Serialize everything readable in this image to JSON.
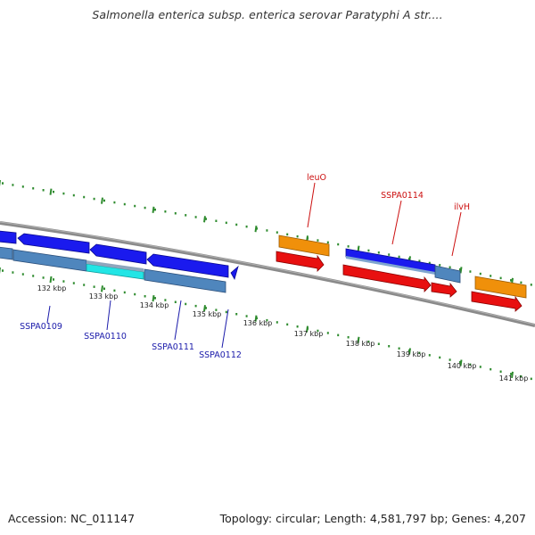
{
  "title": "Salmonella enterica subsp. enterica serovar Paratyphi A str....",
  "footer": {
    "accession": "Accession: NC_011147",
    "summary": "Topology: circular; Length: 4,581,797 bp; Genes: 4,207"
  },
  "colors": {
    "backbone": "#7a7a7a",
    "tick": "#2e8b2e",
    "gene_blue": "#1a1aee",
    "gene_steel": "#4f86bd",
    "gene_cyan": "#22e5e5",
    "gene_red": "#e81010",
    "gene_orange": "#f0900a",
    "label_blue": "#1a1aaa",
    "label_red": "#cc1010"
  },
  "ticks": [
    {
      "label": "132 kbp"
    },
    {
      "label": "133 kbp"
    },
    {
      "label": "134 kbp"
    },
    {
      "label": "135 kbp"
    },
    {
      "label": "136 kbp"
    },
    {
      "label": "137 kbp"
    },
    {
      "label": "138 kbp"
    },
    {
      "label": "139 kbp"
    },
    {
      "label": "140 kbp"
    },
    {
      "label": "141 kbp"
    }
  ],
  "gene_labels": [
    {
      "name": "SSPA0109",
      "strand": "reverse"
    },
    {
      "name": "SSPA0110",
      "strand": "reverse"
    },
    {
      "name": "SSPA0111",
      "strand": "reverse"
    },
    {
      "name": "SSPA0112",
      "strand": "reverse"
    },
    {
      "name": "leuO",
      "strand": "forward"
    },
    {
      "name": "SSPA0114",
      "strand": "forward"
    },
    {
      "name": "ilvH",
      "strand": "forward"
    }
  ]
}
